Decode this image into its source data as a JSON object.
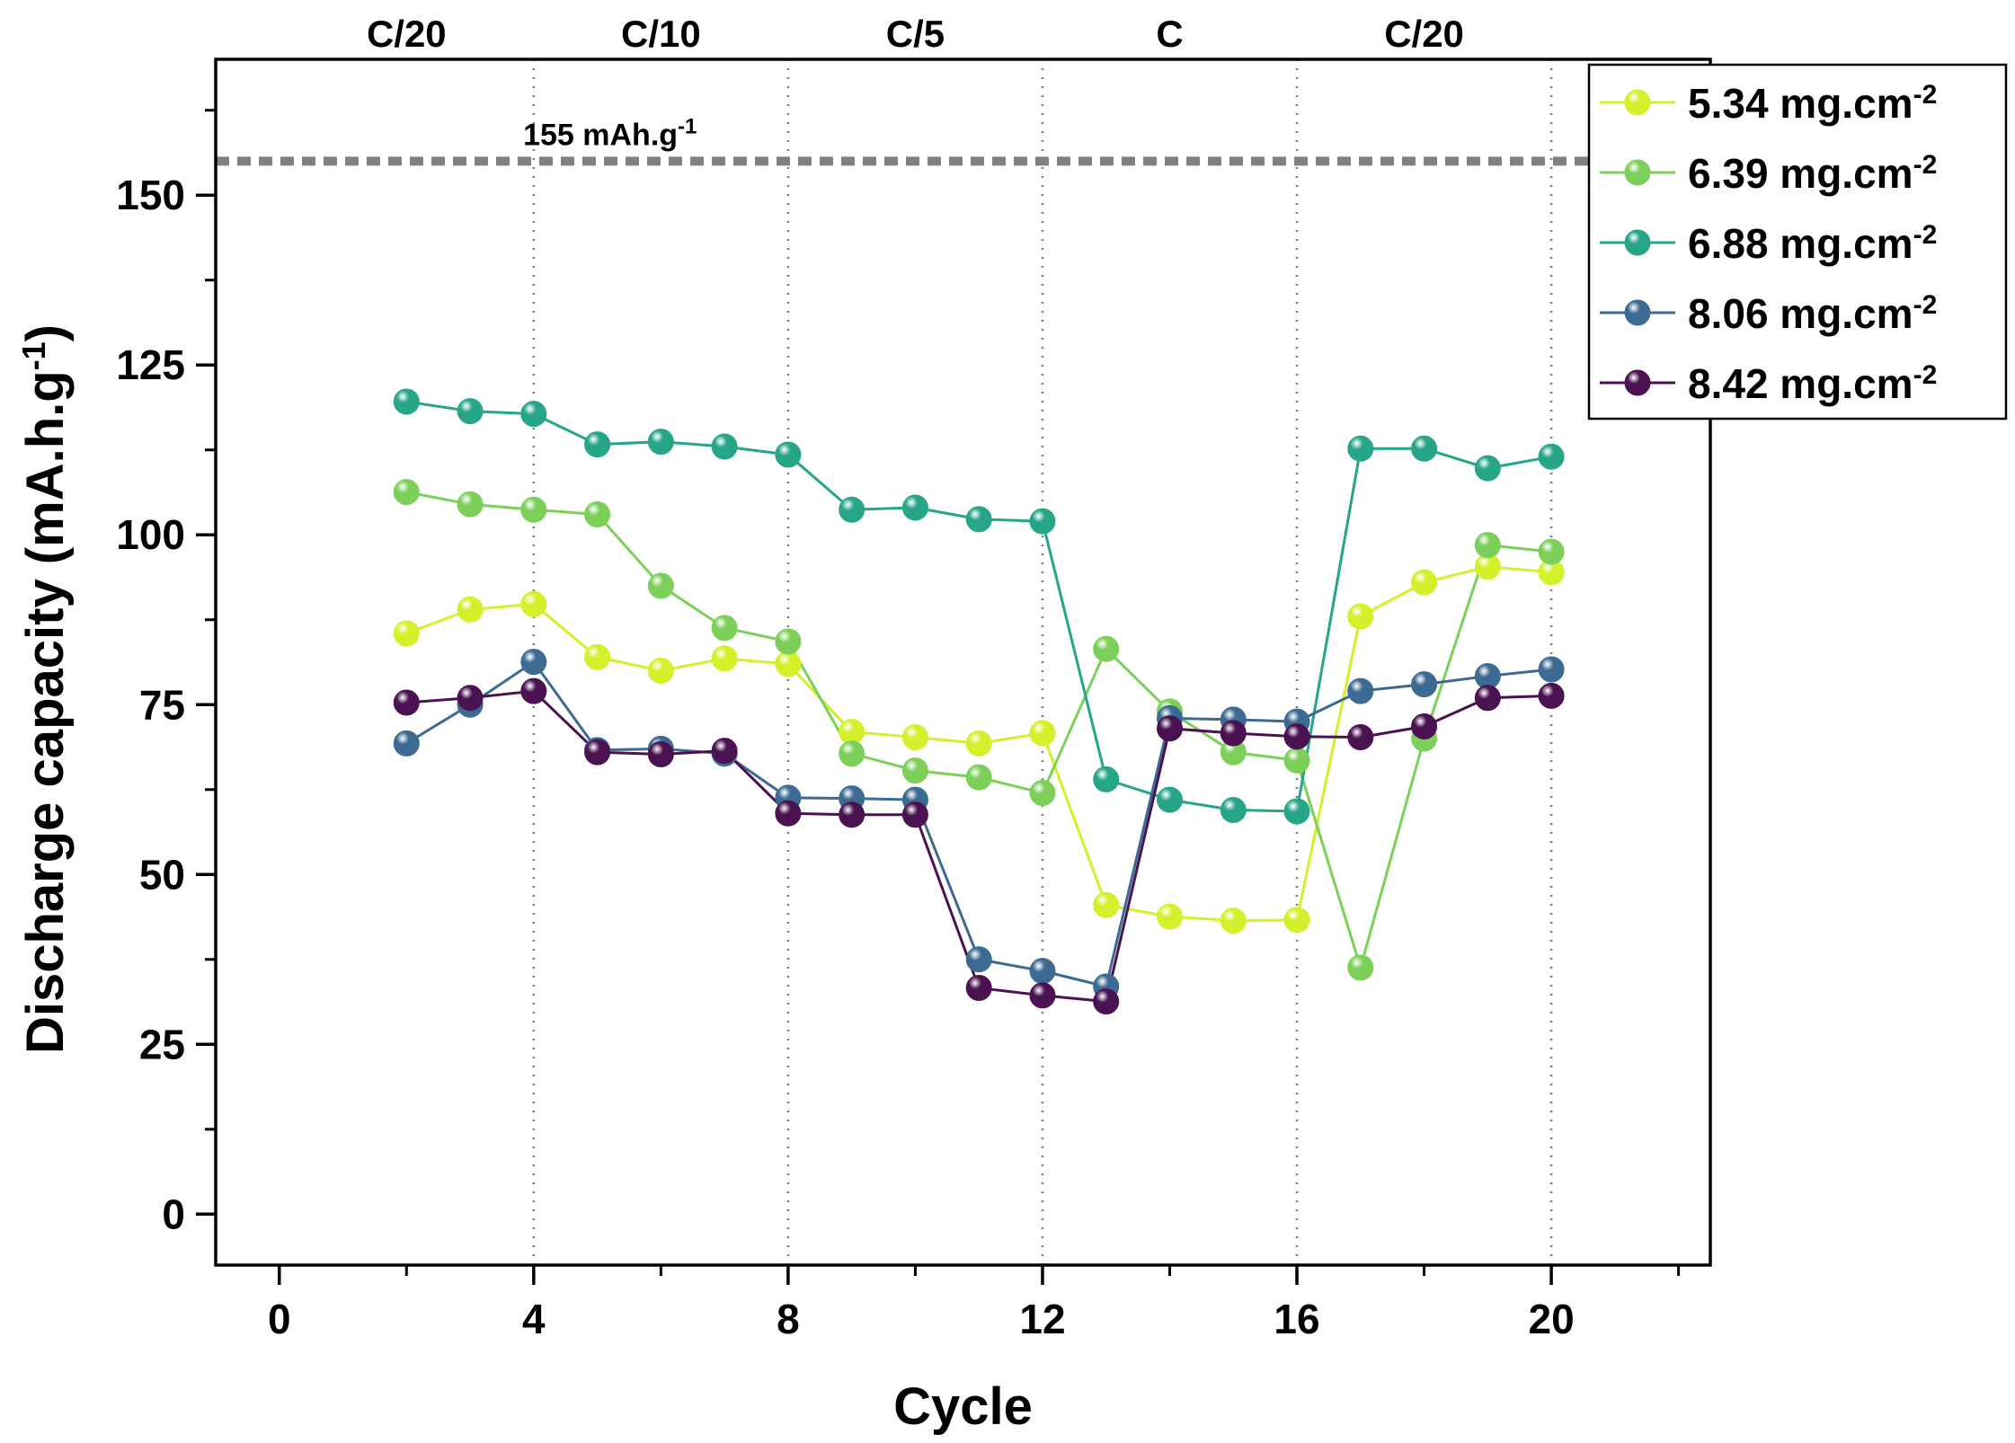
{
  "chart_data": {
    "type": "line",
    "xlabel": "Cycle",
    "ylabel": "Discharge capacity (mA.h.g",
    "ylabel_sup": "-1",
    "ylabel_close": ")",
    "xlim": [
      -1,
      22.5
    ],
    "ylim": [
      -7.5,
      170
    ],
    "xticks": [
      0,
      4,
      8,
      12,
      16,
      20
    ],
    "yticks": [
      0,
      25,
      50,
      75,
      100,
      125,
      150
    ],
    "xticks_minor": [
      2,
      6,
      10,
      14,
      18,
      22
    ],
    "yticks_minor": [
      12.5,
      37.5,
      62.5,
      87.5,
      112.5,
      137.5,
      162.5
    ],
    "rate_dividers": [
      4,
      8,
      12,
      16,
      20
    ],
    "rate_labels": [
      {
        "text": "C/20",
        "x": 2
      },
      {
        "text": "C/10",
        "x": 6
      },
      {
        "text": "C/5",
        "x": 10
      },
      {
        "text": "C",
        "x": 14
      },
      {
        "text": "C/20",
        "x": 18
      }
    ],
    "reference_line": {
      "value": 155,
      "label": "155 mAh.g",
      "label_sup": "-1"
    },
    "legend_position": "top-right",
    "x": [
      2,
      3,
      4,
      5,
      6,
      7,
      8,
      9,
      10,
      11,
      12,
      13,
      14,
      15,
      16,
      17,
      18,
      19,
      20
    ],
    "series": [
      {
        "name": "5.34 mg.cm",
        "name_sup": "-2",
        "color": "#d4f02a",
        "values": [
          85.5,
          89,
          89.8,
          82,
          80,
          81.8,
          81,
          71,
          70.2,
          69.3,
          70.8,
          45.5,
          43.8,
          43.2,
          43.3,
          88,
          93,
          95.3,
          94.5
        ]
      },
      {
        "name": "6.39 mg.cm",
        "name_sup": "-2",
        "color": "#7cd05a",
        "values": [
          106.3,
          104.5,
          103.7,
          103,
          92.5,
          86.3,
          84.3,
          67.8,
          65.3,
          64.3,
          62,
          83.2,
          74,
          68,
          66.8,
          36.3,
          70,
          98.5,
          97.5
        ]
      },
      {
        "name": "6.88 mg.cm",
        "name_sup": "-2",
        "color": "#26a588",
        "values": [
          119.6,
          118.2,
          117.8,
          113.3,
          113.7,
          113,
          111.8,
          103.7,
          104,
          102.3,
          102,
          64,
          61,
          59.5,
          59.3,
          112.7,
          112.7,
          109.8,
          111.5
        ]
      },
      {
        "name": "8.06 mg.cm",
        "name_sup": "-2",
        "color": "#3d6a92",
        "values": [
          69.3,
          75,
          81.3,
          68.3,
          68.5,
          67.8,
          61.3,
          61.2,
          61,
          37.5,
          35.8,
          33.5,
          73,
          72.8,
          72.5,
          77,
          78,
          79.2,
          80.2
        ]
      },
      {
        "name": "8.42 mg.cm",
        "name_sup": "-2",
        "color": "#4a1250",
        "values": [
          75.3,
          76,
          77,
          68,
          67.7,
          68.2,
          59,
          58.8,
          58.8,
          33.3,
          32.2,
          31.3,
          71.5,
          70.8,
          70.3,
          70.2,
          71.8,
          76,
          76.3
        ]
      }
    ]
  }
}
